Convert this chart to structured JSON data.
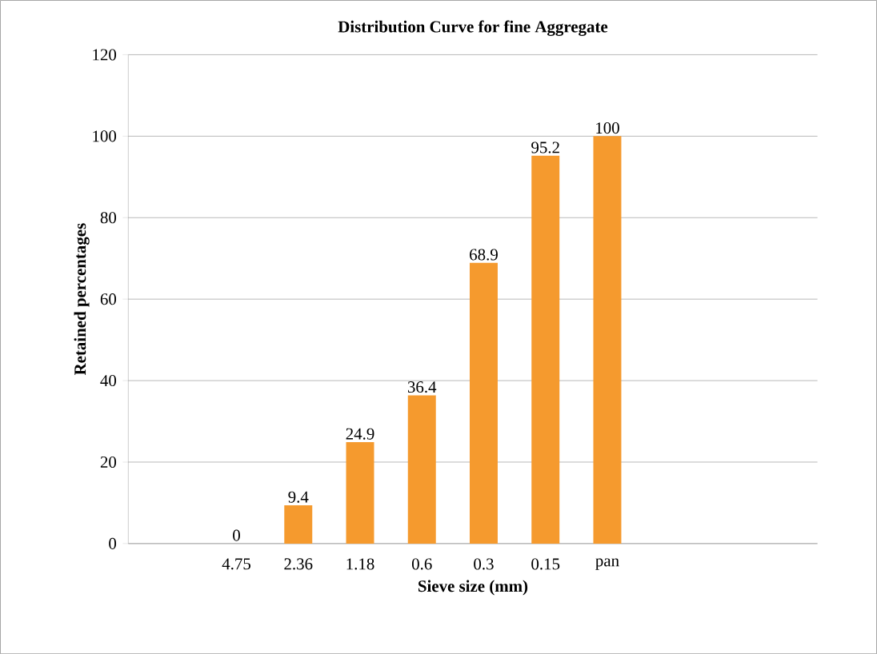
{
  "chart_data": {
    "type": "bar",
    "title": "Distribution  Curve for fine Aggregate",
    "xlabel": "Sieve size (mm)",
    "ylabel": "Retained percentages",
    "categories": [
      "4.75",
      "2.36",
      "1.18",
      "0.6",
      "0.3",
      "0.15",
      "pan"
    ],
    "values": [
      0,
      9.4,
      24.9,
      36.4,
      68.9,
      95.2,
      100
    ],
    "color": "#f59a2e",
    "ylim": [
      0,
      120
    ],
    "yticks": [
      0,
      20,
      40,
      60,
      80,
      100,
      120
    ],
    "grid": "y",
    "data_labels": true
  }
}
